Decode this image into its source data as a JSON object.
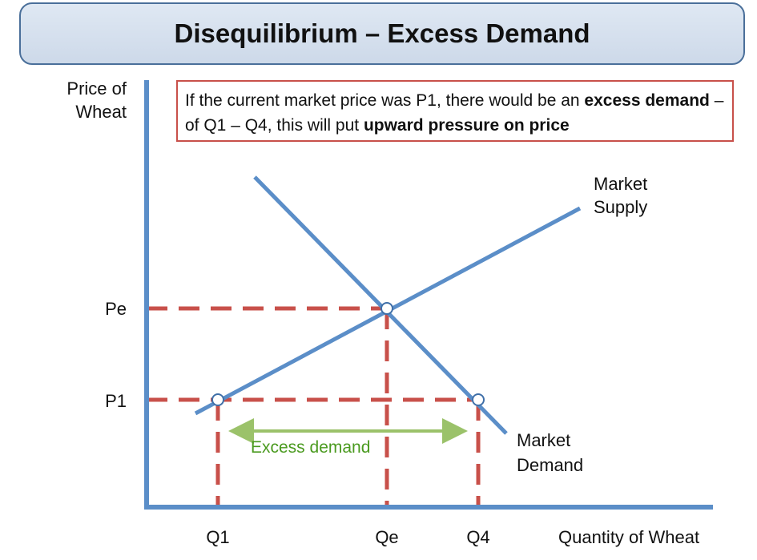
{
  "title": "Disequilibrium – Excess Demand",
  "note": {
    "part1": "If the current market price was P1, there would be an ",
    "bold1": "excess demand",
    "part2": " – of Q1 – Q4, this will put ",
    "bold2": "upward pressure on price"
  },
  "axes": {
    "y_title_line1": "Price of",
    "y_title_line2": "Wheat",
    "x_title": "Quantity of Wheat"
  },
  "ticks": {
    "y": [
      "Pe",
      "P1"
    ],
    "x": [
      "Q1",
      "Qe",
      "Q4"
    ]
  },
  "curves": {
    "supply_line1": "Market",
    "supply_line2": "Supply",
    "demand_line1": "Market",
    "demand_line2": "Demand"
  },
  "excess_label": "Excess demand",
  "colors": {
    "axis": "#5b8ec8",
    "curve": "#5b8ec8",
    "guide": "#c8504a",
    "arrow": "#9bc26a",
    "excess_text": "#4a9a1f",
    "banner_border": "#4a6f9a"
  }
}
